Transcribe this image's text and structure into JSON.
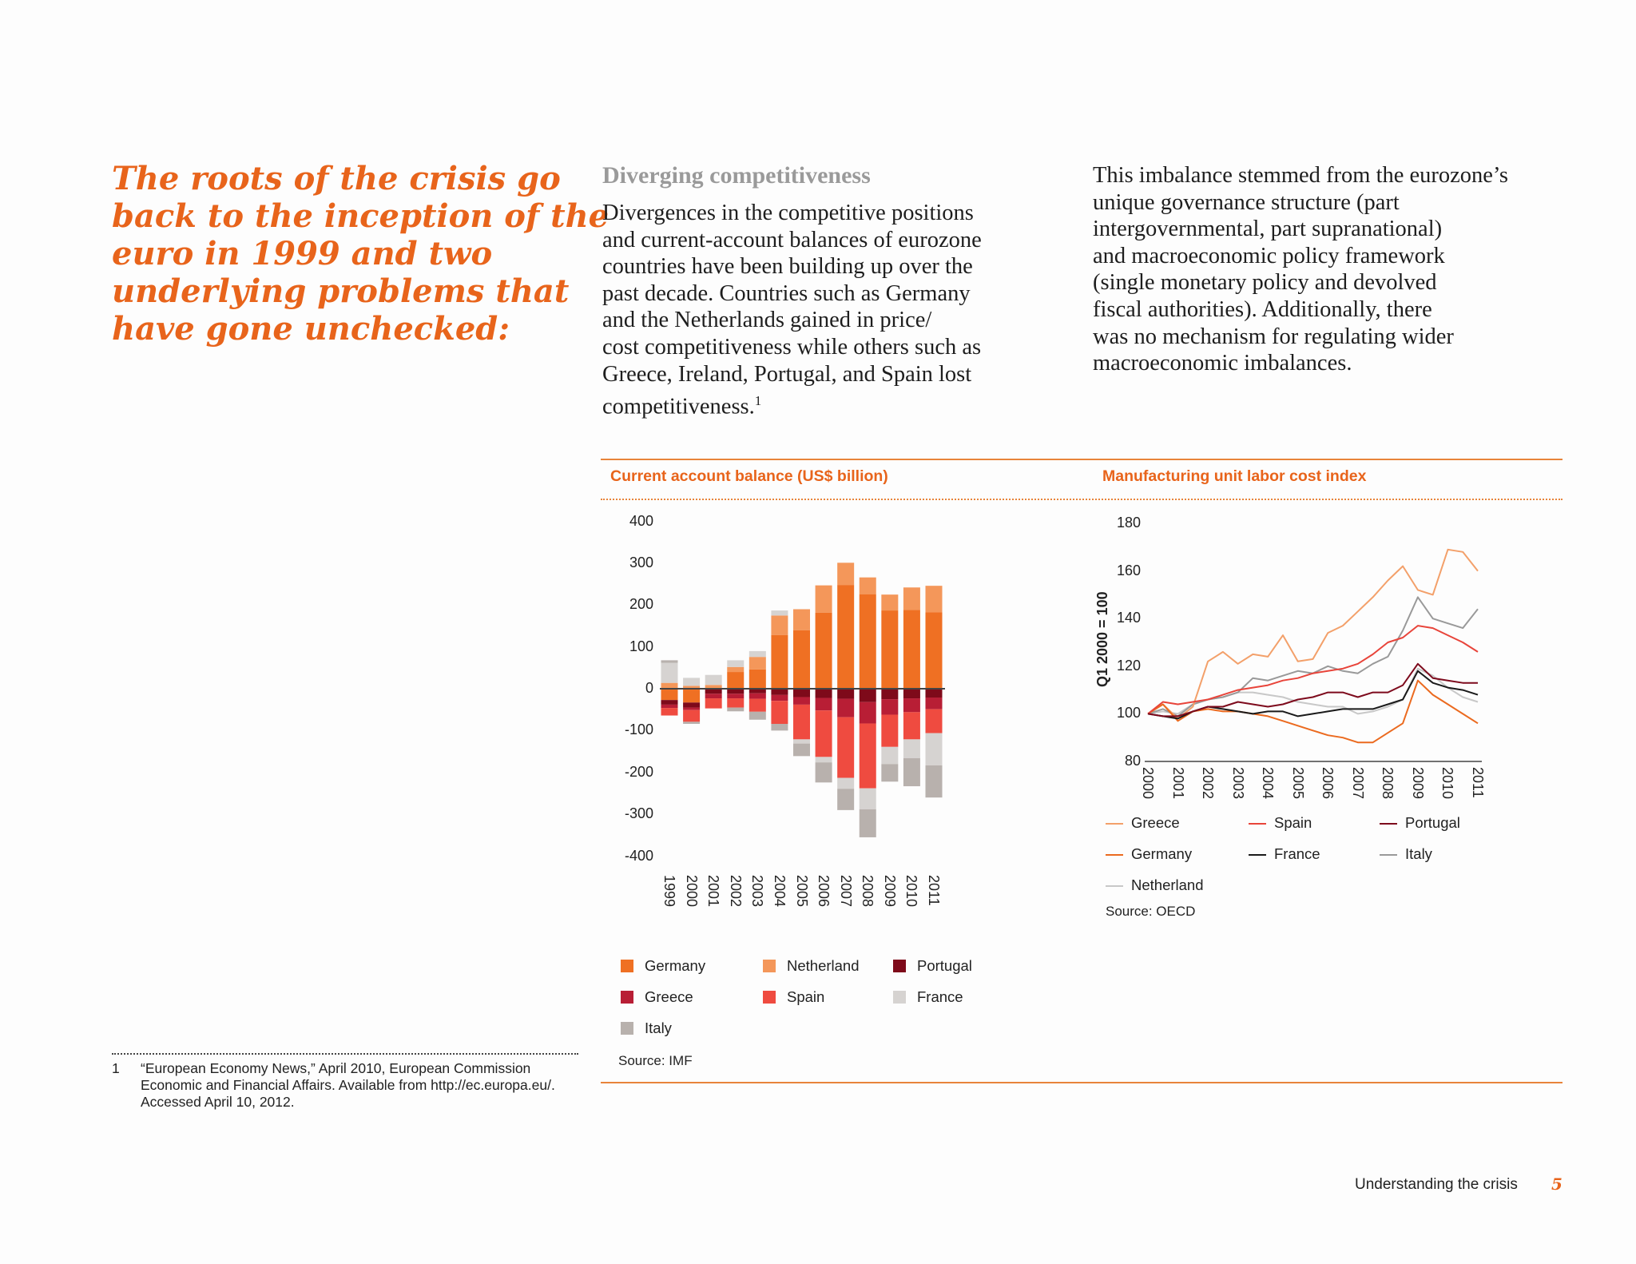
{
  "headline_lines": [
    "The roots of the crisis go",
    "back to the inception of the",
    "euro in 1999 and two",
    "underlying problems that",
    "have gone unchecked:"
  ],
  "middle": {
    "heading": "Diverging competitiveness",
    "lines": [
      "Divergences in the competitive positions",
      "and current-account balances of eurozone",
      "countries have been building up over the",
      "past decade. Countries such as Germany",
      "and the Netherlands gained in price/",
      "cost competitiveness while others such as",
      "Greece, Ireland, Portugal, and Spain lost",
      "competitiveness."
    ],
    "footnote_ref": "1"
  },
  "right": {
    "lines": [
      "This imbalance stemmed from the eurozone’s",
      "unique governance structure (part",
      "intergovernmental, part supranational)",
      "and macroeconomic policy framework",
      "(single monetary policy and devolved",
      "fiscal authorities). Additionally, there",
      "was no mechanism for regulating wider",
      "macroeconomic imbalances."
    ]
  },
  "footnote": {
    "number": "1",
    "lines": [
      "“European Economy News,” April 2010, European Commission",
      "Economic and Financial Affairs. Available from http://ec.europa.eu/.",
      "Accessed April 10, 2012."
    ]
  },
  "footer": {
    "section": "Understanding the crisis",
    "page": "5"
  },
  "chart_data": [
    {
      "type": "bar",
      "stacked": true,
      "title": "Current account balance (US$ billion)",
      "source": "Source: IMF",
      "ylim": [
        -400,
        400
      ],
      "yticks": [
        400,
        300,
        200,
        100,
        0,
        -100,
        -200,
        -300,
        -400
      ],
      "categories": [
        "1999",
        "2000",
        "2001",
        "2002",
        "2003",
        "2004",
        "2005",
        "2006",
        "2007",
        "2008",
        "2009",
        "2010",
        "2011"
      ],
      "legend_order": [
        "Germany",
        "Netherland",
        "Portugal",
        "Greece",
        "Spain",
        "France",
        "Italy"
      ],
      "series": [
        {
          "name": "Germany",
          "color": "#ef7023",
          "values": [
            -27,
            -33,
            0,
            40,
            46,
            128,
            140,
            182,
            248,
            226,
            187,
            188,
            183
          ]
        },
        {
          "name": "Netherland",
          "color": "#f4975a",
          "values": [
            14,
            7,
            9,
            12,
            30,
            47,
            50,
            65,
            53,
            40,
            38,
            54,
            63
          ]
        },
        {
          "name": "Portugal",
          "color": "#7e0a1a",
          "values": [
            -11,
            -12,
            -12,
            -12,
            -11,
            -15,
            -20,
            -22,
            -24,
            -32,
            -25,
            -23,
            -21
          ]
        },
        {
          "name": "Greece",
          "color": "#b81e35",
          "values": [
            -8,
            -6,
            -11,
            -11,
            -13,
            -14,
            -18,
            -30,
            -44,
            -51,
            -37,
            -33,
            -28
          ]
        },
        {
          "name": "Spain",
          "color": "#ef4b40",
          "values": [
            -18,
            -28,
            -24,
            -22,
            -31,
            -55,
            -83,
            -111,
            -145,
            -155,
            -77,
            -65,
            -57
          ]
        },
        {
          "name": "France",
          "color": "#d6d3d1",
          "values": [
            48,
            19,
            24,
            16,
            14,
            12,
            -10,
            -13,
            -26,
            -50,
            -41,
            -45,
            -77
          ]
        },
        {
          "name": "Italy",
          "color": "#b8b1ad",
          "values": [
            6,
            -5,
            0,
            -9,
            -19,
            -16,
            -30,
            -48,
            -51,
            -67,
            -42,
            -67,
            -77
          ]
        }
      ]
    },
    {
      "type": "line",
      "title": "Manufacturing unit labor cost index",
      "ylabel": "Q1 2000 = 100",
      "source": "Source: OECD",
      "ylim": [
        80,
        180
      ],
      "yticks": [
        180,
        160,
        140,
        120,
        100,
        80
      ],
      "xlim": [
        2000,
        2011
      ],
      "xticks": [
        "2000",
        "2001",
        "2002",
        "2003",
        "2004",
        "2005",
        "2006",
        "2007",
        "2008",
        "2009",
        "2010",
        "2011"
      ],
      "x": [
        2000,
        2000.5,
        2001,
        2001.5,
        2002,
        2002.5,
        2003,
        2003.5,
        2004,
        2004.5,
        2005,
        2005.5,
        2006,
        2006.5,
        2007,
        2007.5,
        2008,
        2008.5,
        2009,
        2009.5,
        2010,
        2010.5,
        2011
      ],
      "legend_order": [
        "Greece",
        "Spain",
        "Portugal",
        "Germany",
        "France",
        "Italy",
        "Netherland"
      ],
      "series": [
        {
          "name": "Greece",
          "color": "#f3a06a",
          "values": [
            100,
            104,
            98,
            103,
            122,
            126,
            121,
            125,
            124,
            133,
            122,
            123,
            134,
            137,
            143,
            149,
            156,
            162,
            152,
            150,
            169,
            168,
            160
          ]
        },
        {
          "name": "Germany",
          "color": "#eb6a1f",
          "values": [
            100,
            104,
            97,
            101,
            102,
            101,
            101,
            100,
            99,
            97,
            95,
            93,
            91,
            90,
            88,
            88,
            92,
            96,
            114,
            108,
            104,
            100,
            96
          ]
        },
        {
          "name": "Spain",
          "color": "#e8443a",
          "values": [
            100,
            105,
            104,
            105,
            106,
            108,
            110,
            111,
            112,
            114,
            115,
            117,
            118,
            119,
            121,
            125,
            130,
            132,
            137,
            136,
            133,
            130,
            126
          ]
        },
        {
          "name": "France",
          "color": "#1a1a1a",
          "values": [
            100,
            99,
            98,
            101,
            103,
            102,
            101,
            100,
            101,
            101,
            99,
            100,
            101,
            102,
            102,
            102,
            104,
            106,
            118,
            113,
            111,
            110,
            108
          ]
        },
        {
          "name": "Portugal",
          "color": "#7d0a1c",
          "values": [
            100,
            99,
            99,
            101,
            103,
            103,
            105,
            104,
            103,
            104,
            106,
            107,
            109,
            109,
            107,
            109,
            109,
            112,
            121,
            115,
            114,
            113,
            113
          ]
        },
        {
          "name": "Italy",
          "color": "#999999",
          "values": [
            100,
            102,
            99,
            104,
            106,
            107,
            109,
            115,
            114,
            116,
            118,
            117,
            120,
            118,
            117,
            121,
            124,
            135,
            149,
            140,
            138,
            136,
            144
          ]
        },
        {
          "name": "Netherland",
          "color": "#c8c8c8",
          "values": [
            100,
            101,
            100,
            104,
            106,
            107,
            109,
            109,
            108,
            107,
            105,
            104,
            103,
            103,
            100,
            101,
            103,
            106,
            119,
            116,
            111,
            107,
            105
          ]
        }
      ]
    }
  ]
}
